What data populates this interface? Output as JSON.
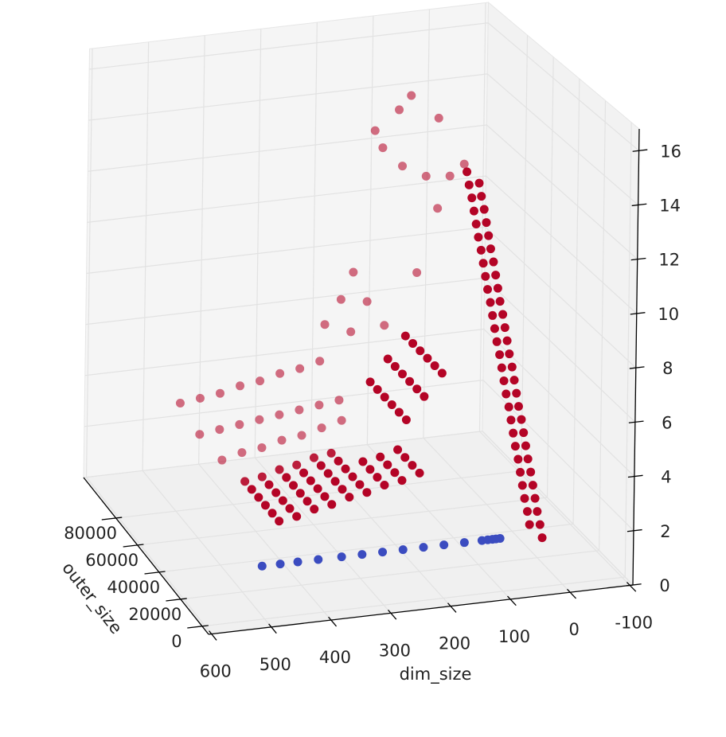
{
  "chart_data": {
    "type": "scatter",
    "xlabel": "dim_size",
    "ylabel": "outer_size",
    "xlim": [
      -105,
      605
    ],
    "ylim": [
      -6000,
      110000
    ],
    "zlim": [
      0,
      16.8
    ],
    "xticks": [
      -100,
      0,
      100,
      200,
      300,
      400,
      500,
      600
    ],
    "yticks": [
      0,
      20000,
      40000,
      60000,
      80000
    ],
    "zticks": [
      0,
      2,
      4,
      6,
      8,
      10,
      12,
      14,
      16
    ],
    "grid": true,
    "depthshade": true,
    "series": [
      {
        "color": "#b40426",
        "x": [
          400,
          400,
          400,
          400,
          400,
          400,
          370,
          370,
          370,
          370,
          370,
          370,
          340,
          340,
          340,
          340,
          340,
          340,
          310,
          310,
          310,
          310,
          310,
          310,
          280,
          280,
          280,
          280,
          280,
          280,
          250,
          250,
          250,
          250,
          250,
          250,
          220,
          220,
          220,
          220,
          190,
          190,
          190,
          190,
          160,
          160,
          160,
          160,
          205,
          205,
          205,
          205,
          205,
          205,
          175,
          175,
          175,
          175,
          175,
          175,
          145,
          145,
          145,
          145,
          145,
          145,
          3,
          3,
          7,
          7,
          12,
          12,
          16,
          16,
          20,
          20,
          24,
          24,
          29,
          29,
          33,
          33,
          37,
          37,
          41,
          41,
          46,
          46,
          50,
          50,
          54,
          54,
          58,
          58,
          63,
          63,
          67,
          67,
          71,
          71,
          75,
          75,
          80,
          80,
          84,
          84,
          88,
          88,
          92,
          92,
          97,
          97,
          101,
          101,
          105,
          105,
          109,
          109,
          114,
          114,
          118,
          118,
          400,
          365,
          330,
          295,
          260,
          225,
          190,
          440,
          405,
          370,
          335,
          300,
          265,
          230,
          195,
          475,
          440,
          405,
          370,
          335,
          300,
          265,
          230,
          138,
          96,
          75,
          26,
          124,
          89,
          47,
          5,
          -20,
          26,
          173,
          61,
          194,
          222,
          148,
          176,
          117
        ],
        "y": [
          40000,
          46000,
          52000,
          58000,
          64000,
          70000,
          40000,
          46000,
          52000,
          58000,
          64000,
          70000,
          40000,
          46000,
          52000,
          58000,
          64000,
          70000,
          40000,
          46000,
          52000,
          58000,
          64000,
          70000,
          40000,
          46000,
          52000,
          58000,
          64000,
          70000,
          40000,
          46000,
          52000,
          58000,
          64000,
          70000,
          40000,
          46000,
          52000,
          58000,
          40000,
          46000,
          52000,
          58000,
          40000,
          46000,
          52000,
          58000,
          30000,
          36000,
          42000,
          48000,
          54000,
          60000,
          30000,
          36000,
          42000,
          48000,
          54000,
          60000,
          30000,
          36000,
          42000,
          48000,
          54000,
          60000,
          15000,
          25000,
          15000,
          25000,
          15000,
          25000,
          15000,
          25000,
          15000,
          25000,
          15000,
          25000,
          15000,
          25000,
          15000,
          25000,
          15000,
          25000,
          15000,
          25000,
          15000,
          25000,
          15000,
          25000,
          15000,
          25000,
          15000,
          25000,
          15000,
          25000,
          15000,
          25000,
          15000,
          25000,
          15000,
          25000,
          15000,
          25000,
          15000,
          25000,
          15000,
          25000,
          15000,
          25000,
          15000,
          25000,
          15000,
          25000,
          15000,
          25000,
          15000,
          25000,
          15000,
          25000,
          15000,
          25000,
          90000,
          90000,
          90000,
          90000,
          90000,
          90000,
          90000,
          90000,
          90000,
          90000,
          90000,
          90000,
          90000,
          90000,
          90000,
          90000,
          90000,
          90000,
          90000,
          90000,
          90000,
          90000,
          90000,
          90000,
          90000,
          90000,
          90000,
          90000,
          90000,
          90000,
          90000,
          90000,
          90000,
          90000,
          90000,
          90000,
          90000,
          90000,
          90000,
          90000
        ],
        "z": [
          1.4,
          1.4,
          1.4,
          1.4,
          1.4,
          1.4,
          1.5,
          1.5,
          1.5,
          1.5,
          1.5,
          1.5,
          1.7,
          1.7,
          1.7,
          1.7,
          1.7,
          1.7,
          1.8,
          1.8,
          1.8,
          1.8,
          1.8,
          1.8,
          2,
          2,
          2,
          2,
          2,
          2,
          2.1,
          2.1,
          2.1,
          2.1,
          2.1,
          2.1,
          2.3,
          2.3,
          2.3,
          2.3,
          2.4,
          2.4,
          2.4,
          2.4,
          2.6,
          2.6,
          2.6,
          2.6,
          5.2,
          5.2,
          5.2,
          5.2,
          5.2,
          5.2,
          6,
          6,
          6,
          6,
          6,
          6,
          6.8,
          6.8,
          6.8,
          6.8,
          6.8,
          6.8,
          1,
          1,
          1.5,
          1.5,
          2,
          2,
          2.5,
          2.5,
          3,
          3,
          3.5,
          3.5,
          4,
          4,
          4.5,
          4.5,
          5,
          5,
          5.5,
          5.5,
          6,
          6,
          6.5,
          6.5,
          7,
          7,
          7.5,
          7.5,
          8,
          8,
          8.5,
          8.5,
          9,
          9,
          9.5,
          9.5,
          10,
          10,
          10.5,
          10.5,
          11,
          11,
          11.5,
          11.5,
          12,
          12,
          12.5,
          12.5,
          13,
          13,
          13.5,
          13.5,
          14,
          14,
          14.5,
          14.5,
          1.2,
          1.4,
          1.5,
          1.7,
          1.8,
          2,
          2.2,
          2.3,
          2.4,
          2.5,
          2.6,
          2.7,
          2.8,
          2.9,
          3,
          3.6,
          3.7,
          3.8,
          4,
          4.1,
          4.3,
          4.4,
          4.6,
          13.3,
          14,
          14.5,
          13.5,
          12.6,
          11.8,
          11.3,
          11.2,
          11.6,
          10,
          7.9,
          7.6,
          6.9,
          6,
          6.7,
          5.6,
          5.7
        ]
      },
      {
        "color": "#3b4cc0",
        "x": [
          436,
          405,
          375,
          340,
          300,
          265,
          230,
          195,
          160,
          125,
          90,
          60,
          50,
          42,
          36,
          29
        ],
        "y": [
          36000,
          36000,
          36000,
          36000,
          36000,
          36000,
          36000,
          36000,
          36000,
          36000,
          36000,
          36000,
          36000,
          36000,
          36000,
          36000
        ],
        "z": [
          0,
          0,
          0,
          0,
          0,
          0,
          0,
          0,
          0,
          0,
          0,
          0,
          0,
          0,
          0,
          0
        ]
      }
    ]
  }
}
